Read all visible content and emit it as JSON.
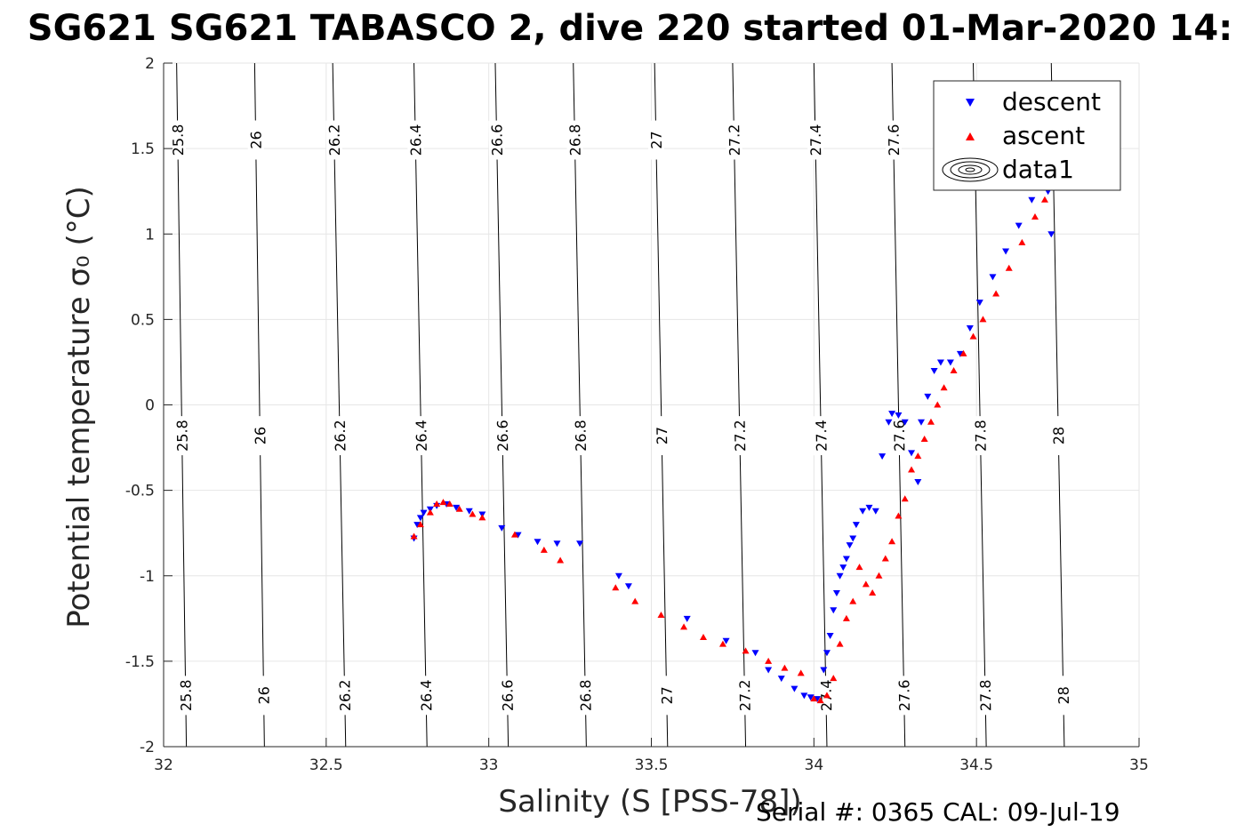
{
  "title": "SG621 SG621 TABASCO 2, dive 220 started 01-Mar-2020 14:",
  "footer": "Serial #: 0365  CAL: 09-Jul-19",
  "colors": {
    "descent": "#0000ff",
    "ascent": "#ff0000",
    "contour": "#000000",
    "grid": "#e6e6e6"
  },
  "chart_data": {
    "type": "scatter",
    "xlabel": "Salinity (S [PSS-78])",
    "ylabel": "Potential temperature σ₀ (°C)",
    "xlim": [
      32,
      35
    ],
    "ylim": [
      -2,
      2
    ],
    "x_ticks": [
      "32",
      "32.5",
      "33",
      "33.5",
      "34",
      "34.5",
      "35"
    ],
    "y_ticks": [
      "-2",
      "-1.5",
      "-1",
      "-0.5",
      "0",
      "0.5",
      "1",
      "1.5",
      "2"
    ],
    "grid": true,
    "legend": {
      "placement": "top-right",
      "entries": [
        "descent",
        "ascent",
        "data1"
      ]
    },
    "contours": [
      {
        "label": "25.8",
        "x_at_ymin": 32.07,
        "x_at_ymax": 32.04
      },
      {
        "label": "26",
        "x_at_ymin": 32.31,
        "x_at_ymax": 32.28
      },
      {
        "label": "26.2",
        "x_at_ymin": 32.56,
        "x_at_ymax": 32.52
      },
      {
        "label": "26.4",
        "x_at_ymin": 32.81,
        "x_at_ymax": 32.77
      },
      {
        "label": "26.6",
        "x_at_ymin": 33.06,
        "x_at_ymax": 33.02
      },
      {
        "label": "26.8",
        "x_at_ymin": 33.3,
        "x_at_ymax": 33.26
      },
      {
        "label": "27",
        "x_at_ymin": 33.55,
        "x_at_ymax": 33.51
      },
      {
        "label": "27.2",
        "x_at_ymin": 33.79,
        "x_at_ymax": 33.75
      },
      {
        "label": "27.4",
        "x_at_ymin": 34.04,
        "x_at_ymax": 34.0
      },
      {
        "label": "27.6",
        "x_at_ymin": 34.28,
        "x_at_ymax": 34.24
      },
      {
        "label": "27.8",
        "x_at_ymin": 34.53,
        "x_at_ymax": 34.49
      },
      {
        "label": "28",
        "x_at_ymin": 34.77,
        "x_at_ymax": 34.73
      }
    ],
    "contour_label_y": [
      1.55,
      -0.18,
      -1.7
    ],
    "series": [
      {
        "name": "descent",
        "x": [
          32.77,
          32.78,
          32.79,
          32.8,
          32.82,
          32.84,
          32.87,
          32.9,
          32.94,
          32.98,
          33.04,
          33.09,
          33.15,
          33.21,
          33.28,
          33.4,
          33.43,
          33.61,
          33.73,
          33.82,
          33.86,
          33.9,
          33.94,
          33.97,
          33.99,
          34.01,
          34.03,
          34.04,
          34.05,
          34.06,
          34.07,
          34.08,
          34.09,
          34.1,
          34.11,
          34.12,
          34.13,
          34.15,
          34.17,
          34.19,
          34.21,
          34.23,
          34.24,
          34.26,
          34.28,
          34.3,
          34.32,
          34.33,
          34.35,
          34.37,
          34.39,
          34.42,
          34.45,
          34.48,
          34.51,
          34.55,
          34.59,
          34.63,
          34.67,
          34.7,
          34.72,
          34.73
        ],
        "y": [
          -0.78,
          -0.7,
          -0.66,
          -0.63,
          -0.61,
          -0.59,
          -0.58,
          -0.6,
          -0.62,
          -0.64,
          -0.72,
          -0.76,
          -0.8,
          -0.81,
          -0.81,
          -1.0,
          -1.06,
          -1.25,
          -1.38,
          -1.45,
          -1.55,
          -1.6,
          -1.66,
          -1.7,
          -1.71,
          -1.72,
          -1.55,
          -1.45,
          -1.35,
          -1.2,
          -1.1,
          -1.0,
          -0.95,
          -0.9,
          -0.82,
          -0.78,
          -0.7,
          -0.62,
          -0.6,
          -0.62,
          -0.3,
          -0.1,
          -0.05,
          -0.06,
          -0.1,
          -0.28,
          -0.45,
          -0.1,
          0.05,
          0.2,
          0.25,
          0.25,
          0.3,
          0.45,
          0.6,
          0.75,
          0.9,
          1.05,
          1.2,
          1.3,
          1.25,
          1.0
        ]
      },
      {
        "name": "ascent",
        "x": [
          32.77,
          32.79,
          32.82,
          32.84,
          32.86,
          32.88,
          32.91,
          32.95,
          32.98,
          33.08,
          33.17,
          33.22,
          33.39,
          33.45,
          33.53,
          33.6,
          33.66,
          33.72,
          33.79,
          33.86,
          33.91,
          33.96,
          34.0,
          34.02,
          34.04,
          34.06,
          34.08,
          34.1,
          34.12,
          34.14,
          34.16,
          34.18,
          34.2,
          34.22,
          34.24,
          34.26,
          34.28,
          34.3,
          34.32,
          34.34,
          34.36,
          34.38,
          34.4,
          34.43,
          34.46,
          34.49,
          34.52,
          34.56,
          34.6,
          34.64,
          34.68,
          34.71,
          34.73
        ],
        "y": [
          -0.77,
          -0.7,
          -0.63,
          -0.58,
          -0.57,
          -0.58,
          -0.61,
          -0.64,
          -0.66,
          -0.76,
          -0.85,
          -0.91,
          -1.07,
          -1.15,
          -1.23,
          -1.3,
          -1.36,
          -1.4,
          -1.44,
          -1.5,
          -1.54,
          -1.57,
          -1.72,
          -1.73,
          -1.7,
          -1.6,
          -1.4,
          -1.25,
          -1.15,
          -0.95,
          -1.05,
          -1.1,
          -1.0,
          -0.9,
          -0.8,
          -0.65,
          -0.55,
          -0.38,
          -0.3,
          -0.2,
          -0.1,
          0.0,
          0.1,
          0.2,
          0.3,
          0.4,
          0.5,
          0.65,
          0.8,
          0.95,
          1.1,
          1.2,
          1.28
        ]
      }
    ]
  }
}
